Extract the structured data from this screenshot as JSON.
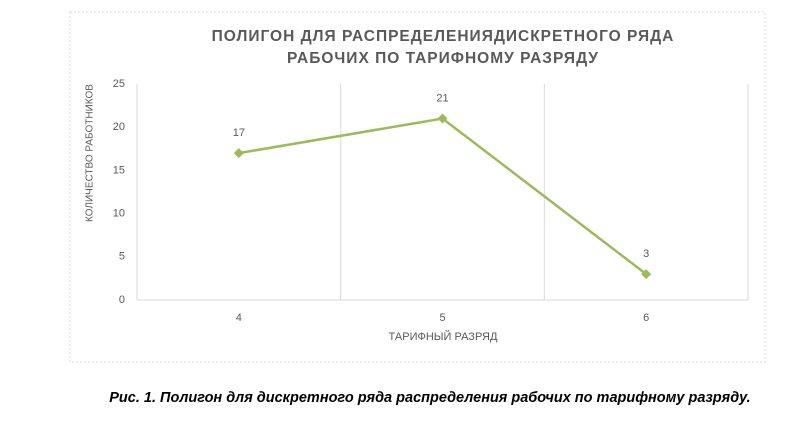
{
  "chart_data": {
    "type": "line",
    "title": "ПОЛИГОН ДЛЯ РАСПРЕДЕЛЕНИЯДИСКРЕТНОГО РЯДА\nРАБОЧИХ ПО ТАРИФНОМУ РАЗРЯДУ",
    "x_label": "ТАРИФНЫЙ РАЗРЯД",
    "y_label": "КОЛИЧЕСТВО РАБОТНИКОВ",
    "categories": [
      "4",
      "5",
      "6"
    ],
    "values": [
      17,
      21,
      3
    ],
    "color": "#9bbb59",
    "ylim": [
      0,
      25
    ],
    "yticks": [
      0,
      5,
      10,
      15,
      20,
      25
    ],
    "grid": true
  },
  "caption": "Рис. 1. Полигон для дискретного ряда распределения рабочих по тарифному разряду."
}
